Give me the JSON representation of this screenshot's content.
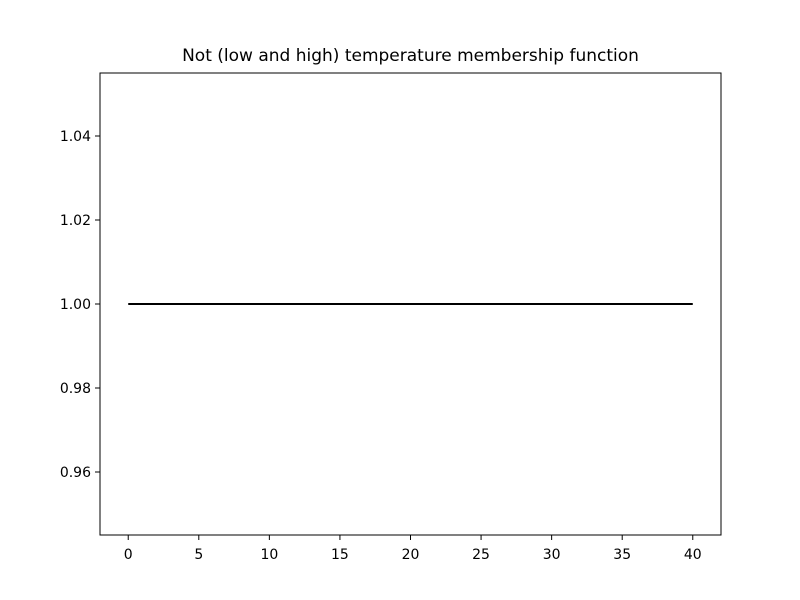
{
  "chart_data": {
    "type": "line",
    "title": "Not (low and high) temperature membership function",
    "xlabel": "",
    "ylabel": "",
    "xlim": [
      -2,
      42
    ],
    "ylim": [
      0.945,
      1.055
    ],
    "xticks": [
      0,
      5,
      10,
      15,
      20,
      25,
      30,
      35,
      40
    ],
    "xtick_labels": [
      "0",
      "5",
      "10",
      "15",
      "20",
      "25",
      "30",
      "35",
      "40"
    ],
    "yticks": [
      0.96,
      0.98,
      1.0,
      1.02,
      1.04
    ],
    "ytick_labels": [
      "0.96",
      "0.98",
      "1.00",
      "1.02",
      "1.04"
    ],
    "grid": false,
    "series": [
      {
        "x": [
          0,
          40
        ],
        "y": [
          1.0,
          1.0
        ],
        "color": "#000000"
      }
    ]
  }
}
